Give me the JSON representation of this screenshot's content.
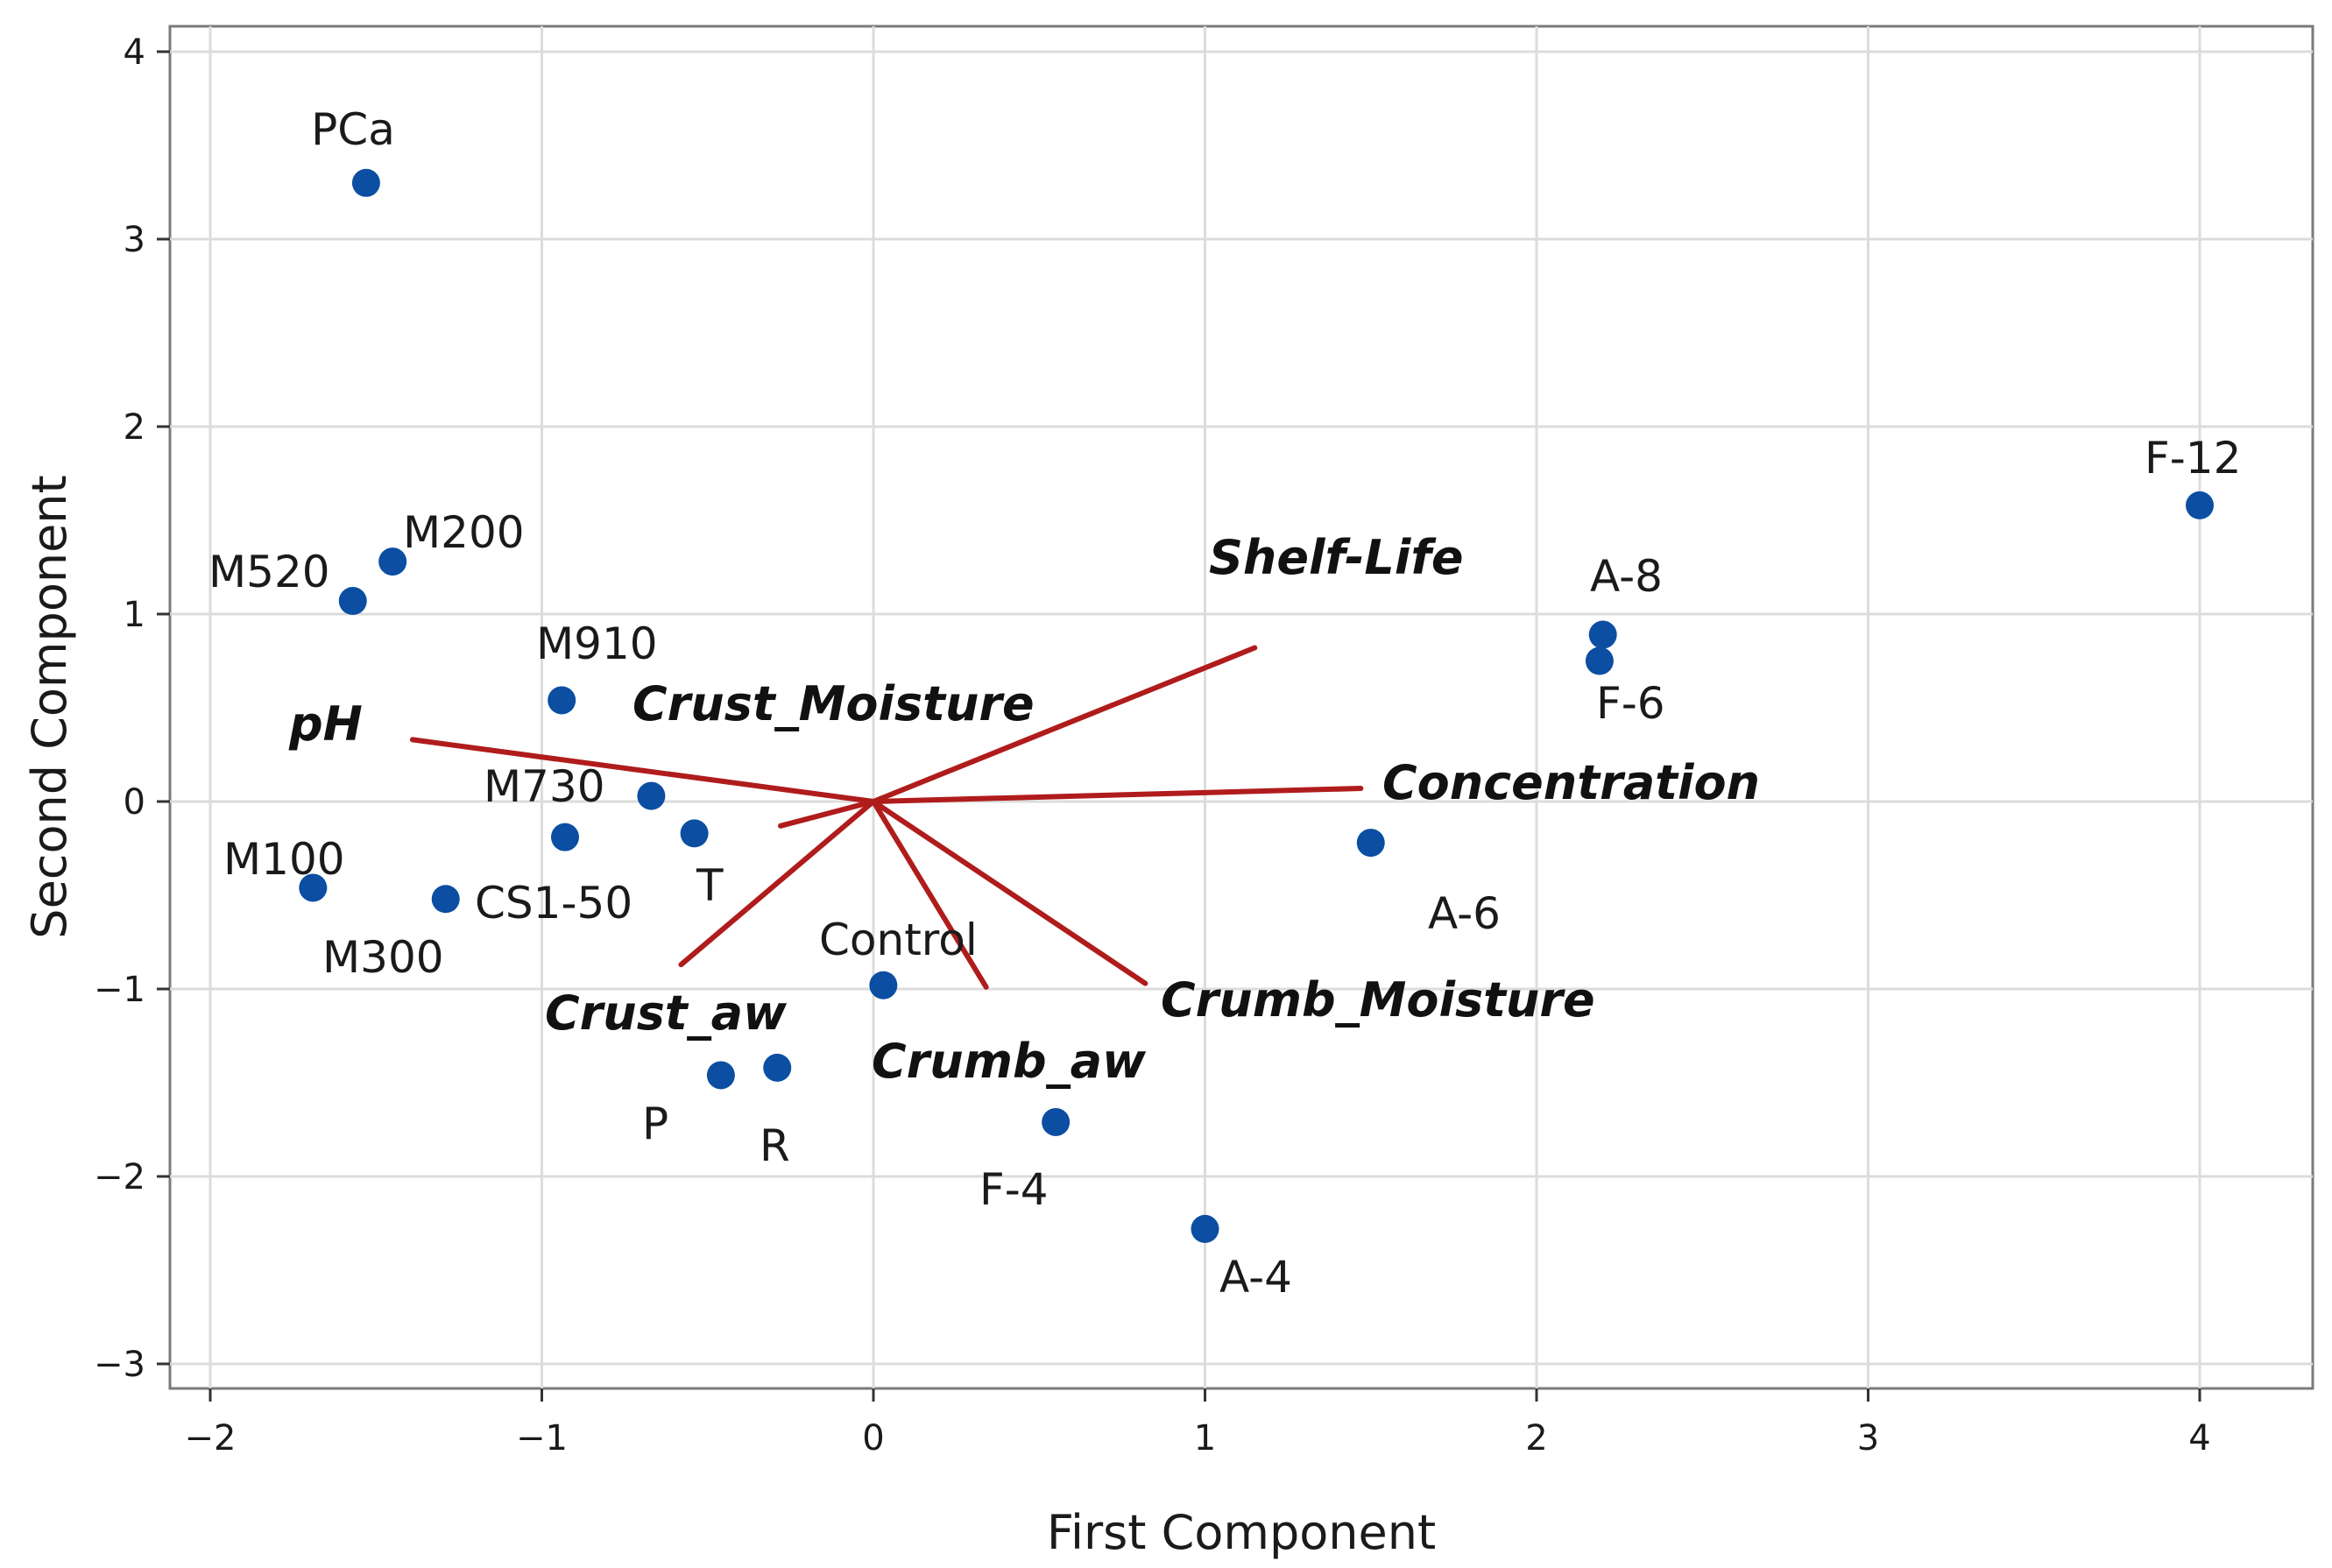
{
  "chart_data": {
    "type": "scatter",
    "title": "",
    "xlabel": "First Component",
    "ylabel": "Second Component",
    "xlim": [
      -2.1,
      4.35
    ],
    "ylim": [
      -3.1,
      4.1
    ],
    "xticks": [
      -2,
      -1,
      0,
      1,
      2,
      3,
      4
    ],
    "yticks": [
      -3,
      -2,
      -1,
      0,
      1,
      2,
      3,
      4
    ],
    "x_tick_labels": [
      "−2",
      "−1",
      "0",
      "1",
      "2",
      "3",
      "4"
    ],
    "y_tick_labels": [
      "−3",
      "−2",
      "−1",
      "0",
      "1",
      "2",
      "3",
      "4"
    ],
    "grid": true,
    "point_color": "#0b4ea2",
    "vector_color": "#b01c1c",
    "points": [
      {
        "label": "PCa",
        "x": -1.53,
        "y": 3.3
      },
      {
        "label": "M200",
        "x": -1.45,
        "y": 1.28
      },
      {
        "label": "M520",
        "x": -1.57,
        "y": 1.07
      },
      {
        "label": "M910",
        "x": -0.94,
        "y": 0.54
      },
      {
        "label": "M730",
        "x": -0.67,
        "y": 0.03
      },
      {
        "label": "T",
        "x": -0.54,
        "y": -0.17
      },
      {
        "label": "CS1-50",
        "x": -0.93,
        "y": -0.19
      },
      {
        "label": "M100",
        "x": -1.69,
        "y": -0.46
      },
      {
        "label": "M300",
        "x": -1.29,
        "y": -0.52
      },
      {
        "label": "Control",
        "x": 0.03,
        "y": -0.98
      },
      {
        "label": "P",
        "x": -0.46,
        "y": -1.46
      },
      {
        "label": "R",
        "x": -0.29,
        "y": -1.42
      },
      {
        "label": "F-4",
        "x": 0.55,
        "y": -1.71
      },
      {
        "label": "A-4",
        "x": 1.0,
        "y": -2.28
      },
      {
        "label": "A-6",
        "x": 1.5,
        "y": -0.22
      },
      {
        "label": "A-8",
        "x": 2.2,
        "y": 0.89
      },
      {
        "label": "F-6",
        "x": 2.19,
        "y": 0.75
      },
      {
        "label": "F-12",
        "x": 4.0,
        "y": 1.58
      }
    ],
    "loadings": [
      {
        "label": "Shelf-Life",
        "x": 1.15,
        "y": 0.82
      },
      {
        "label": "Crust_Moisture",
        "x": -0.28,
        "y": -0.13
      },
      {
        "label": "pH",
        "x": -1.39,
        "y": 0.33
      },
      {
        "label": "Concentration",
        "x": 1.47,
        "y": 0.07
      },
      {
        "label": "Crust_aw",
        "x": -0.58,
        "y": -0.87
      },
      {
        "label": "Crumb_aw",
        "x": 0.34,
        "y": -0.99
      },
      {
        "label": "Crumb_Moisture",
        "x": 0.82,
        "y": -0.97
      }
    ]
  }
}
